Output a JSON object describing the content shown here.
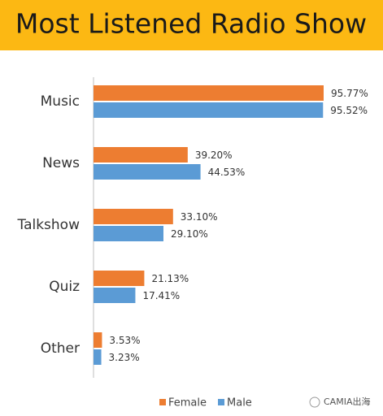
{
  "chart_data": {
    "type": "bar",
    "orientation": "horizontal",
    "title": "Most Listened Radio Show",
    "categories": [
      "Music",
      "News",
      "Talkshow",
      "Quiz",
      "Other"
    ],
    "series": [
      {
        "name": "Female",
        "color": "#ed7d31",
        "values": [
          95.77,
          39.2,
          33.1,
          21.13,
          3.53
        ],
        "value_labels": [
          "95.77%",
          "39.20%",
          "33.10%",
          "21.13%",
          "3.53%"
        ]
      },
      {
        "name": "Male",
        "color": "#5b9bd5",
        "values": [
          95.52,
          44.53,
          29.1,
          17.41,
          3.23
        ],
        "value_labels": [
          "95.52%",
          "44.53%",
          "29.10%",
          "17.41%",
          "3.23%"
        ]
      }
    ],
    "legend": "bottom",
    "watermark": "CAMIA出海"
  }
}
